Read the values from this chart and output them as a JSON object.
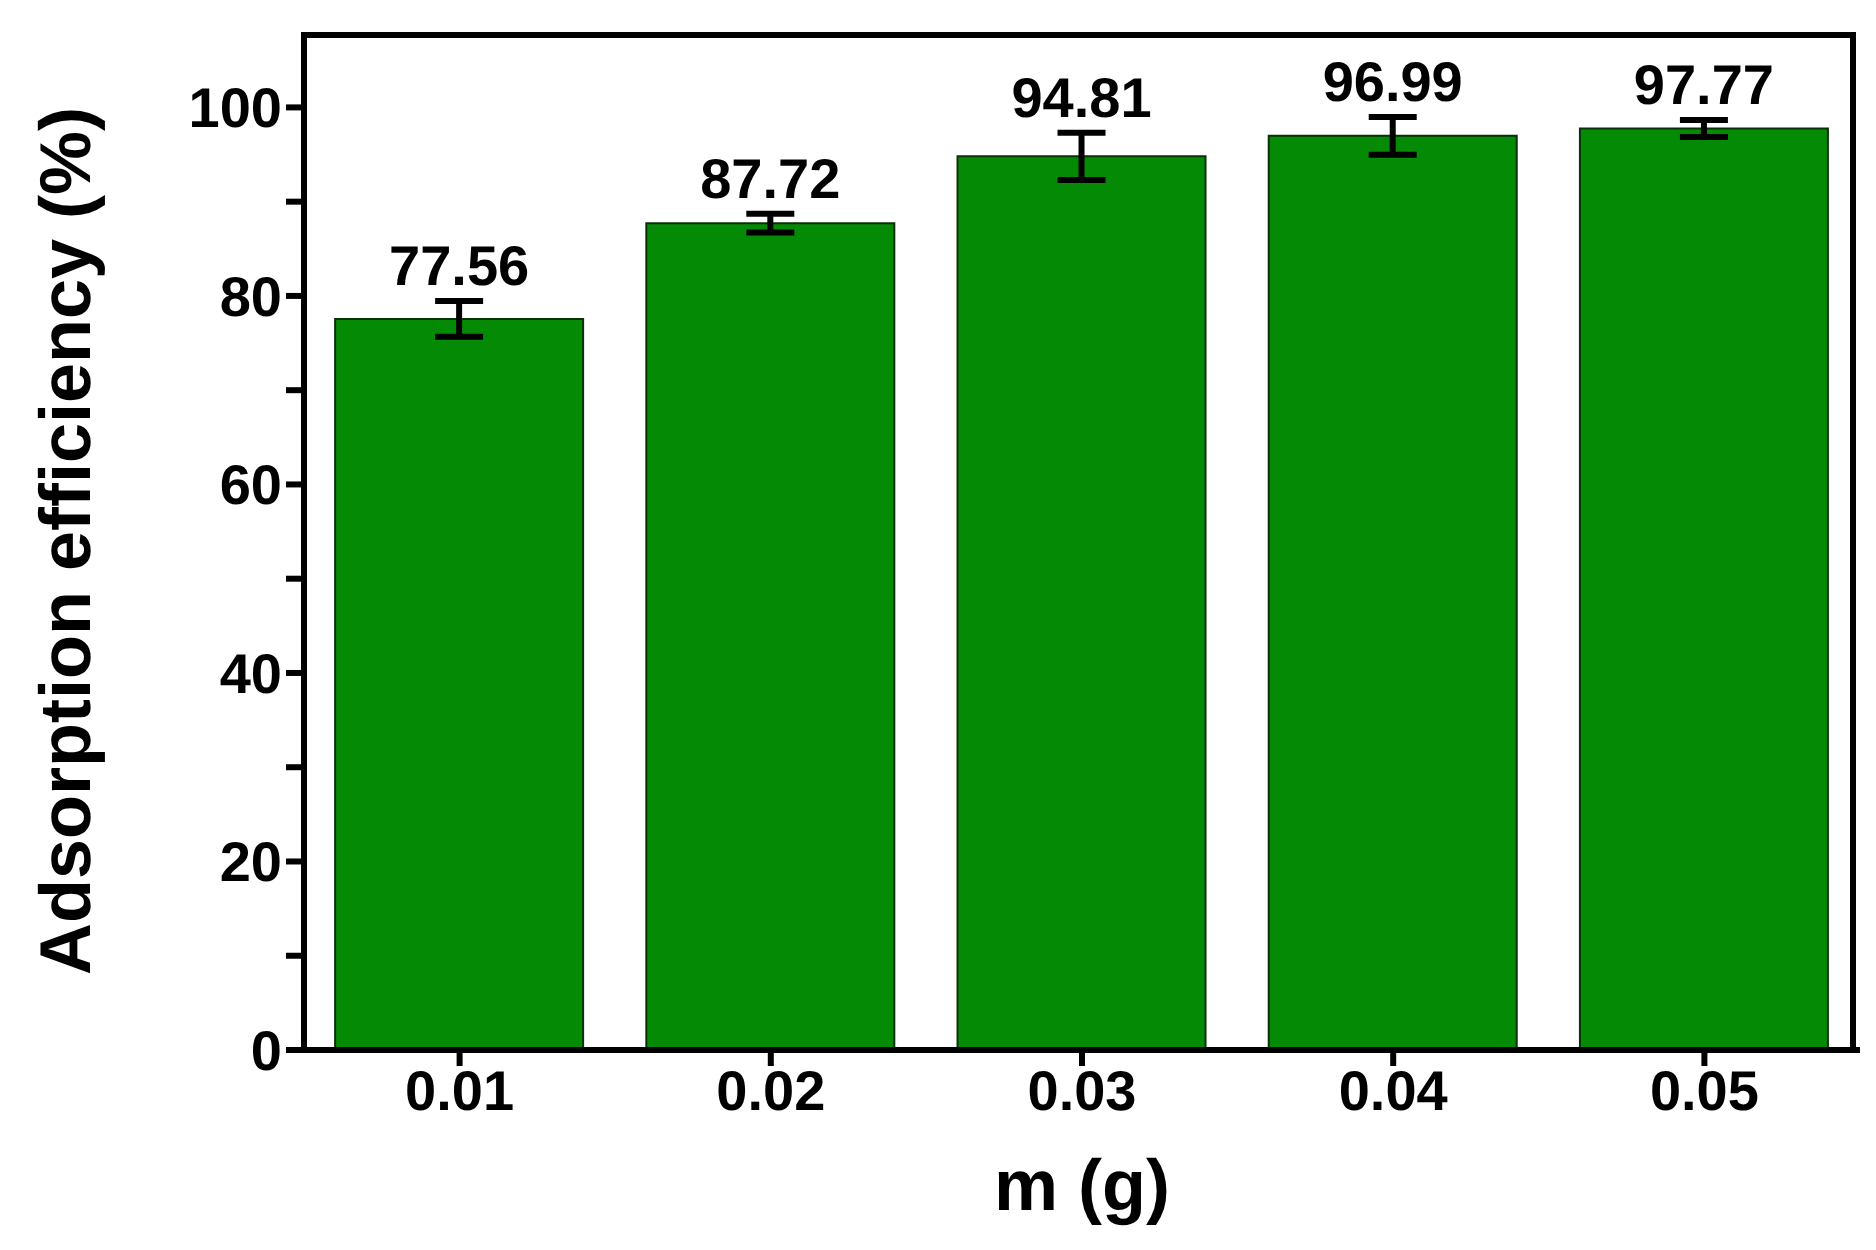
{
  "chart_data": {
    "type": "bar",
    "xlabel": "m (g)",
    "ylabel": "Adsorption efficiency (%)",
    "categories": [
      "0.01",
      "0.02",
      "0.03",
      "0.04",
      "0.05"
    ],
    "values": [
      77.56,
      87.72,
      94.81,
      96.99,
      97.77
    ],
    "errors": [
      1.9,
      1.0,
      2.5,
      2.0,
      0.9
    ],
    "color": "#058a05",
    "data_labels": true,
    "grid": false,
    "legend": false,
    "ylim": [
      0,
      108
    ],
    "yticks": [
      0,
      {
        "value": 10,
        "label": null
      },
      20,
      {
        "value": 30,
        "label": null
      },
      40,
      {
        "value": 50,
        "label": null
      },
      60,
      {
        "value": 70,
        "label": null
      },
      80,
      {
        "value": 90,
        "label": null
      },
      100
    ]
  }
}
